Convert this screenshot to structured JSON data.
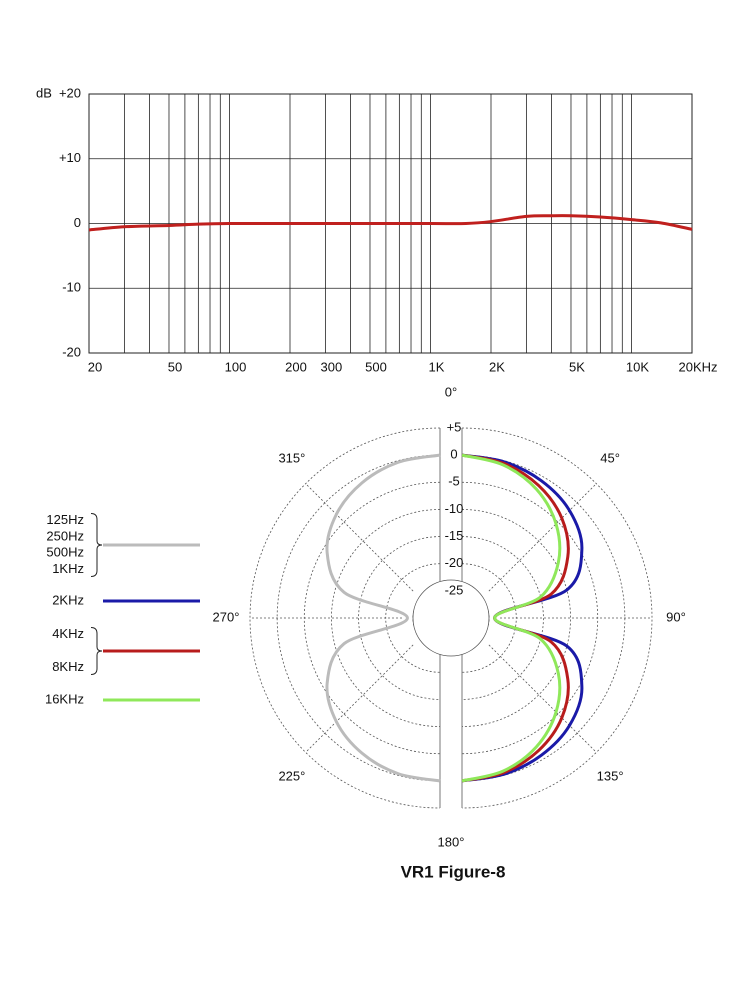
{
  "chart_data": [
    {
      "type": "line",
      "y_label": "dB",
      "xscale": "log",
      "x": [
        20,
        30,
        50,
        70,
        100,
        150,
        200,
        300,
        500,
        1000,
        1500,
        2000,
        3000,
        4000,
        5000,
        7000,
        10000,
        14000,
        20000
      ],
      "series": [
        {
          "color": "#c0201e",
          "values": [
            -1,
            -0.5,
            -0.3,
            -0.1,
            0,
            0,
            0,
            0,
            0,
            0,
            0,
            0.3,
            1.1,
            1.2,
            1.2,
            1,
            0.6,
            0.1,
            -0.9
          ]
        }
      ],
      "xlim": [
        20,
        20000
      ],
      "xticks": [
        20,
        50,
        100,
        200,
        300,
        500,
        {
          "value": 1000,
          "label": "1K"
        },
        {
          "value": 2000,
          "label": "2K"
        },
        {
          "value": 5000,
          "label": "5K"
        },
        {
          "value": 10000,
          "label": "10K"
        },
        {
          "value": 20000,
          "label": "20KHz"
        }
      ],
      "xminor": [
        30,
        40,
        60,
        70,
        80,
        90,
        400,
        600,
        700,
        800,
        900,
        3000,
        4000,
        6000,
        7000,
        8000,
        9000
      ],
      "ylim": [
        -20,
        20
      ],
      "yticks": [
        {
          "value": 20,
          "label": "+20"
        },
        {
          "value": 10,
          "label": "+10"
        },
        0,
        -10,
        -20
      ],
      "grid": true
    },
    {
      "type": "polar",
      "title": "VR1 Figure-8",
      "rlim": [
        -30,
        5
      ],
      "rticks": [
        {
          "value": 5,
          "label": "+5"
        },
        0,
        -5,
        -10,
        -15,
        -20,
        -25
      ],
      "angle_labels": [
        {
          "value": 0,
          "label": "0°"
        },
        {
          "value": 45,
          "label": "45°"
        },
        {
          "value": 90,
          "label": "90°"
        },
        {
          "value": 135,
          "label": "135°"
        },
        {
          "value": 180,
          "label": "180°"
        },
        {
          "value": 225,
          "label": "225°"
        },
        {
          "value": 270,
          "label": "270°"
        },
        {
          "value": 315,
          "label": "315°"
        }
      ],
      "series": [
        {
          "name": [
            "125Hz",
            "250Hz",
            "500Hz",
            "1KHz"
          ],
          "color": "#bbbbbb",
          "theta": [
            180,
            195,
            210,
            225,
            240,
            255,
            270,
            285,
            300,
            315,
            330,
            345,
            360
          ],
          "values": [
            0,
            -0.3,
            -1.25,
            -3,
            -6,
            -11.7,
            -24,
            -11.7,
            -6,
            -3,
            -1.25,
            -0.3,
            0
          ]
        },
        {
          "name": "2KHz",
          "color": "#1a1aa8",
          "theta": [
            0,
            15,
            30,
            45,
            60,
            75,
            90,
            105,
            120,
            135,
            150,
            165,
            180
          ],
          "values": [
            0,
            -0.2,
            -0.8,
            -2,
            -4.5,
            -10,
            -24,
            -10,
            -4.5,
            -2,
            -0.8,
            -0.2,
            0
          ]
        },
        {
          "name": [
            "4KHz",
            "8KHz"
          ],
          "color": "#b81c1c",
          "theta": [
            0,
            15,
            30,
            45,
            60,
            75,
            90,
            105,
            120,
            135,
            150,
            165,
            180
          ],
          "values": [
            0,
            -0.5,
            -1.8,
            -4,
            -7.5,
            -13,
            -24,
            -13,
            -7.5,
            -4,
            -1.8,
            -0.5,
            0
          ]
        },
        {
          "name": "16KHz",
          "color": "#8fe85a",
          "theta": [
            0,
            15,
            30,
            45,
            60,
            75,
            90,
            105,
            120,
            135,
            150,
            165,
            180
          ],
          "values": [
            0,
            -0.8,
            -2.6,
            -5.5,
            -9.5,
            -15,
            -24,
            -15,
            -9.5,
            -5.5,
            -2.6,
            -0.8,
            0
          ]
        }
      ]
    }
  ]
}
